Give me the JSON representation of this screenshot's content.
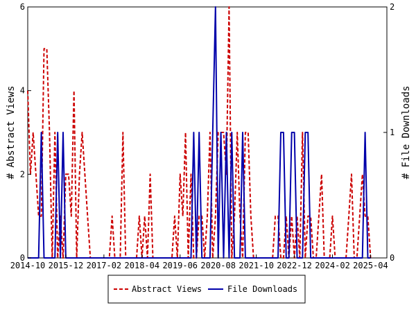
{
  "chart_data": {
    "type": "line",
    "xlabel": "",
    "x_ticks": [
      "2014-10",
      "2015-12",
      "2017-02",
      "2018-04",
      "2019-06",
      "2020-08",
      "2021-10",
      "2022-12",
      "2024-02",
      "2025-04"
    ],
    "x_range": [
      "2014-10",
      "2025-10"
    ],
    "y_left": {
      "label": "# Abstract Views",
      "ticks": [
        "0",
        "2",
        "4",
        "6"
      ],
      "ylim": [
        0,
        6
      ]
    },
    "y_right": {
      "label": "# File Downloads",
      "ticks": [
        "0",
        "1",
        "2"
      ],
      "ylim": [
        0,
        2
      ]
    },
    "legend_placement": "bottom-center",
    "grid": false,
    "series": [
      {
        "name": "Abstract Views",
        "axis": "left",
        "color": "#cc0000",
        "style": "dashed",
        "points": [
          [
            "2014-10",
            4
          ],
          [
            "2014-11",
            2
          ],
          [
            "2014-12",
            3
          ],
          [
            "2015-01",
            2
          ],
          [
            "2015-02",
            1
          ],
          [
            "2015-03",
            1
          ],
          [
            "2015-04",
            5
          ],
          [
            "2015-05",
            5
          ],
          [
            "2015-06",
            3
          ],
          [
            "2015-07",
            0
          ],
          [
            "2015-08",
            3
          ],
          [
            "2015-09",
            0
          ],
          [
            "2015-10",
            1
          ],
          [
            "2015-11",
            0
          ],
          [
            "2015-12",
            2
          ],
          [
            "2016-01",
            2
          ],
          [
            "2016-02",
            1
          ],
          [
            "2016-03",
            4
          ],
          [
            "2016-04",
            0
          ],
          [
            "2016-05",
            2
          ],
          [
            "2016-06",
            3
          ],
          [
            "2016-07",
            2
          ],
          [
            "2016-08",
            1
          ],
          [
            "2016-09",
            0
          ],
          [
            "2017-01",
            0
          ],
          [
            "2017-02",
            0
          ],
          [
            "2017-03",
            0
          ],
          [
            "2017-04",
            0
          ],
          [
            "2017-05",
            1
          ],
          [
            "2017-06",
            0
          ],
          [
            "2017-07",
            0
          ],
          [
            "2017-08",
            0
          ],
          [
            "2017-09",
            3
          ],
          [
            "2017-10",
            0
          ],
          [
            "2017-11",
            0
          ],
          [
            "2017-12",
            0
          ],
          [
            "2018-01",
            0
          ],
          [
            "2018-02",
            0
          ],
          [
            "2018-03",
            1
          ],
          [
            "2018-04",
            0
          ],
          [
            "2018-05",
            1
          ],
          [
            "2018-06",
            0
          ],
          [
            "2018-07",
            2
          ],
          [
            "2018-08",
            0
          ],
          [
            "2018-09",
            0
          ],
          [
            "2018-10",
            0
          ],
          [
            "2019-03",
            0
          ],
          [
            "2019-04",
            1
          ],
          [
            "2019-05",
            0
          ],
          [
            "2019-06",
            2
          ],
          [
            "2019-07",
            1
          ],
          [
            "2019-08",
            3
          ],
          [
            "2019-09",
            0
          ],
          [
            "2019-10",
            2
          ],
          [
            "2019-11",
            0
          ],
          [
            "2019-12",
            0
          ],
          [
            "2020-01",
            1
          ],
          [
            "2020-02",
            1
          ],
          [
            "2020-03",
            0
          ],
          [
            "2020-04",
            1
          ],
          [
            "2020-05",
            3
          ],
          [
            "2020-06",
            0
          ],
          [
            "2020-07",
            1
          ],
          [
            "2020-08",
            3
          ],
          [
            "2020-09",
            3
          ],
          [
            "2020-10",
            3
          ],
          [
            "2020-11",
            2
          ],
          [
            "2020-12",
            6
          ],
          [
            "2021-01",
            0
          ],
          [
            "2021-02",
            1
          ],
          [
            "2021-03",
            3
          ],
          [
            "2021-04",
            1
          ],
          [
            "2021-05",
            0
          ],
          [
            "2021-06",
            3
          ],
          [
            "2021-07",
            3
          ],
          [
            "2021-08",
            1
          ],
          [
            "2021-09",
            0
          ],
          [
            "2022-01",
            0
          ],
          [
            "2022-02",
            0
          ],
          [
            "2022-03",
            0
          ],
          [
            "2022-04",
            0
          ],
          [
            "2022-05",
            1
          ],
          [
            "2022-06",
            1
          ],
          [
            "2022-07",
            0
          ],
          [
            "2022-08",
            0
          ],
          [
            "2022-09",
            1
          ],
          [
            "2022-10",
            0
          ],
          [
            "2022-11",
            1
          ],
          [
            "2022-12",
            0
          ],
          [
            "2023-01",
            1
          ],
          [
            "2023-02",
            0
          ],
          [
            "2023-03",
            3
          ],
          [
            "2023-04",
            0
          ],
          [
            "2023-05",
            1
          ],
          [
            "2023-06",
            1
          ],
          [
            "2023-07",
            0
          ],
          [
            "2023-08",
            0
          ],
          [
            "2023-09",
            1
          ],
          [
            "2023-10",
            2
          ],
          [
            "2023-11",
            0
          ],
          [
            "2023-12",
            0
          ],
          [
            "2024-01",
            0
          ],
          [
            "2024-02",
            1
          ],
          [
            "2024-03",
            0
          ],
          [
            "2024-06",
            0
          ],
          [
            "2024-07",
            0
          ],
          [
            "2024-08",
            1
          ],
          [
            "2024-09",
            2
          ],
          [
            "2024-10",
            0
          ],
          [
            "2024-11",
            0
          ],
          [
            "2024-12",
            1
          ],
          [
            "2025-01",
            2
          ],
          [
            "2025-02",
            1
          ],
          [
            "2025-03",
            1
          ],
          [
            "2025-04",
            0
          ]
        ]
      },
      {
        "name": "File Downloads",
        "axis": "right",
        "color": "#0000aa",
        "style": "solid",
        "points": [
          [
            "2014-10",
            0
          ],
          [
            "2014-11",
            0
          ],
          [
            "2014-12",
            0
          ],
          [
            "2015-01",
            0
          ],
          [
            "2015-02",
            0
          ],
          [
            "2015-03",
            1
          ],
          [
            "2015-04",
            0
          ],
          [
            "2015-05",
            0
          ],
          [
            "2015-06",
            0
          ],
          [
            "2015-07",
            0
          ],
          [
            "2015-08",
            0
          ],
          [
            "2015-09",
            1
          ],
          [
            "2015-10",
            0
          ],
          [
            "2015-11",
            1
          ],
          [
            "2015-12",
            0
          ],
          [
            "2016-01",
            0
          ],
          [
            "2016-02",
            0
          ],
          [
            "2016-03",
            0
          ],
          [
            "2016-04",
            0
          ],
          [
            "2016-05",
            0
          ],
          [
            "2016-06",
            0
          ],
          [
            "2019-10",
            0
          ],
          [
            "2019-11",
            1
          ],
          [
            "2019-12",
            0
          ],
          [
            "2020-01",
            1
          ],
          [
            "2020-02",
            0
          ],
          [
            "2020-03",
            0
          ],
          [
            "2020-04",
            0
          ],
          [
            "2020-05",
            0
          ],
          [
            "2020-06",
            1
          ],
          [
            "2020-07",
            2
          ],
          [
            "2020-08",
            0
          ],
          [
            "2020-09",
            1
          ],
          [
            "2020-10",
            0
          ],
          [
            "2020-11",
            1
          ],
          [
            "2020-12",
            0
          ],
          [
            "2021-01",
            1
          ],
          [
            "2021-02",
            0
          ],
          [
            "2021-03",
            0
          ],
          [
            "2021-04",
            0
          ],
          [
            "2021-05",
            1
          ],
          [
            "2021-06",
            0
          ],
          [
            "2021-07",
            0
          ],
          [
            "2022-06",
            0
          ],
          [
            "2022-07",
            1
          ],
          [
            "2022-08",
            1
          ],
          [
            "2022-09",
            0
          ],
          [
            "2022-10",
            0
          ],
          [
            "2022-11",
            1
          ],
          [
            "2022-12",
            1
          ],
          [
            "2023-01",
            0
          ],
          [
            "2023-02",
            0
          ],
          [
            "2023-03",
            0
          ],
          [
            "2023-04",
            1
          ],
          [
            "2023-05",
            1
          ],
          [
            "2023-06",
            0
          ],
          [
            "2023-07",
            0
          ],
          [
            "2024-10",
            0
          ],
          [
            "2024-11",
            0
          ],
          [
            "2024-12",
            0
          ],
          [
            "2025-01",
            0
          ],
          [
            "2025-02",
            1
          ],
          [
            "2025-03",
            0
          ],
          [
            "2025-04",
            0
          ]
        ]
      }
    ]
  }
}
